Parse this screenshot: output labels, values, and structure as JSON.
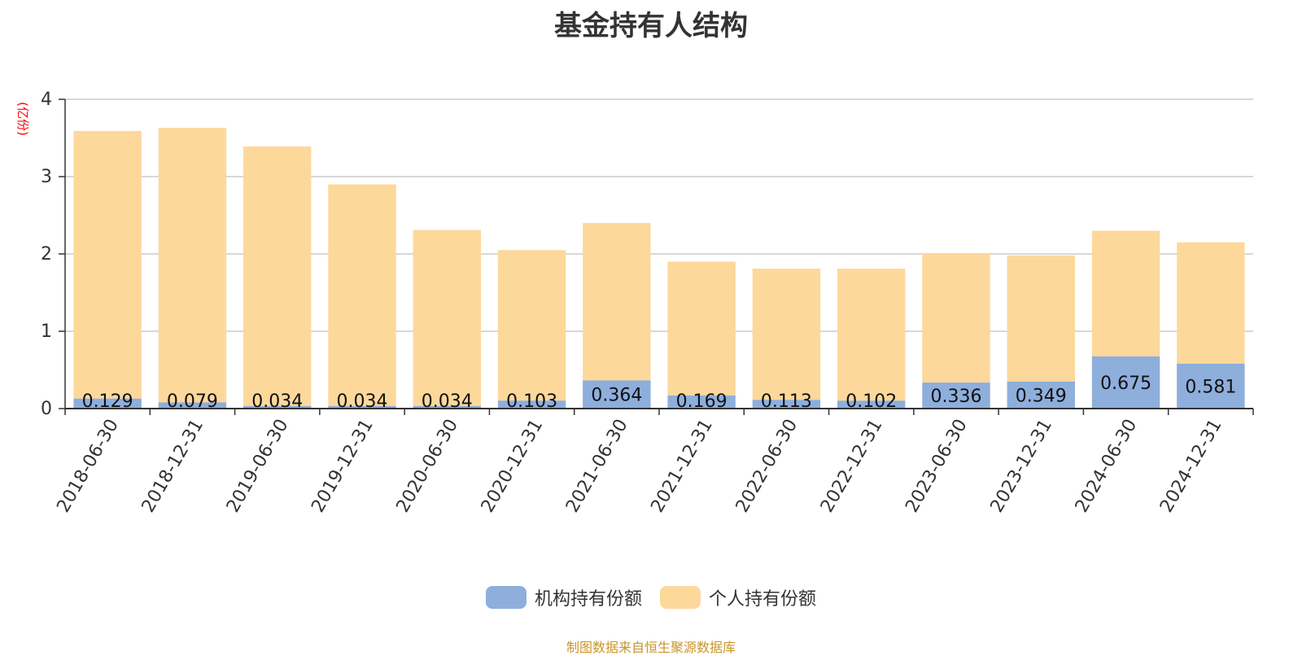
{
  "chart_data": {
    "type": "bar",
    "stacked": true,
    "title": "基金持有人结构",
    "ylabel": "(亿份)",
    "ylim": [
      0,
      4
    ],
    "yticks": [
      0,
      1,
      2,
      3,
      4
    ],
    "grid": true,
    "legend_position": "bottom",
    "categories": [
      "2018-06-30",
      "2018-12-31",
      "2019-06-30",
      "2019-12-31",
      "2020-06-30",
      "2020-12-31",
      "2021-06-30",
      "2021-12-31",
      "2022-06-30",
      "2022-12-31",
      "2023-06-30",
      "2023-12-31",
      "2024-06-30",
      "2024-12-31"
    ],
    "series": [
      {
        "name": "机构持有份额",
        "color": "#8eaedc",
        "values": [
          0.129,
          0.079,
          0.034,
          0.034,
          0.034,
          0.103,
          0.364,
          0.169,
          0.113,
          0.102,
          0.336,
          0.349,
          0.675,
          0.581
        ],
        "labels": [
          "0.129",
          "0.079",
          "0.034",
          "0.034",
          "0.034",
          "0.103",
          "0.364",
          "0.169",
          "0.113",
          "0.102",
          "0.336",
          "0.349",
          "0.675",
          "0.581"
        ]
      },
      {
        "name": "个人持有份额",
        "color": "#fdd89b",
        "values": [
          3.461,
          3.551,
          3.356,
          2.866,
          2.276,
          1.947,
          2.036,
          1.731,
          1.697,
          1.708,
          1.664,
          1.631,
          1.625,
          1.569
        ]
      }
    ]
  },
  "source": "制图数据来自恒生聚源数据库",
  "colors": {
    "axis": "#333333",
    "grid": "#cccccc",
    "ylabel": "#ff0000",
    "source": "#c8962a"
  }
}
